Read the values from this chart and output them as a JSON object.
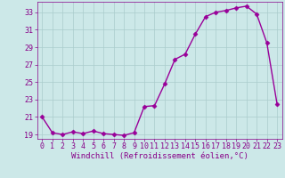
{
  "x": [
    0,
    1,
    2,
    3,
    4,
    5,
    6,
    7,
    8,
    9,
    10,
    11,
    12,
    13,
    14,
    15,
    16,
    17,
    18,
    19,
    20,
    21,
    22,
    23
  ],
  "y": [
    21.0,
    19.2,
    19.0,
    19.3,
    19.1,
    19.4,
    19.1,
    19.0,
    18.9,
    19.2,
    22.2,
    22.3,
    24.8,
    27.6,
    28.2,
    30.5,
    32.5,
    33.0,
    33.2,
    33.5,
    33.7,
    32.8,
    29.5,
    22.5
  ],
  "line_color": "#990099",
  "marker": "D",
  "marker_size": 2.5,
  "bg_color": "#cce8e8",
  "grid_color": "#aacccc",
  "xlabel": "Windchill (Refroidissement éolien,°C)",
  "xlim": [
    -0.5,
    23.5
  ],
  "ylim": [
    18.5,
    34.2
  ],
  "yticks": [
    19,
    21,
    23,
    25,
    27,
    29,
    31,
    33
  ],
  "xticks": [
    0,
    1,
    2,
    3,
    4,
    5,
    6,
    7,
    8,
    9,
    10,
    11,
    12,
    13,
    14,
    15,
    16,
    17,
    18,
    19,
    20,
    21,
    22,
    23
  ],
  "label_color": "#880088",
  "tick_color": "#880088",
  "font_size_label": 6.5,
  "font_size_tick": 6.0,
  "linewidth": 1.0
}
